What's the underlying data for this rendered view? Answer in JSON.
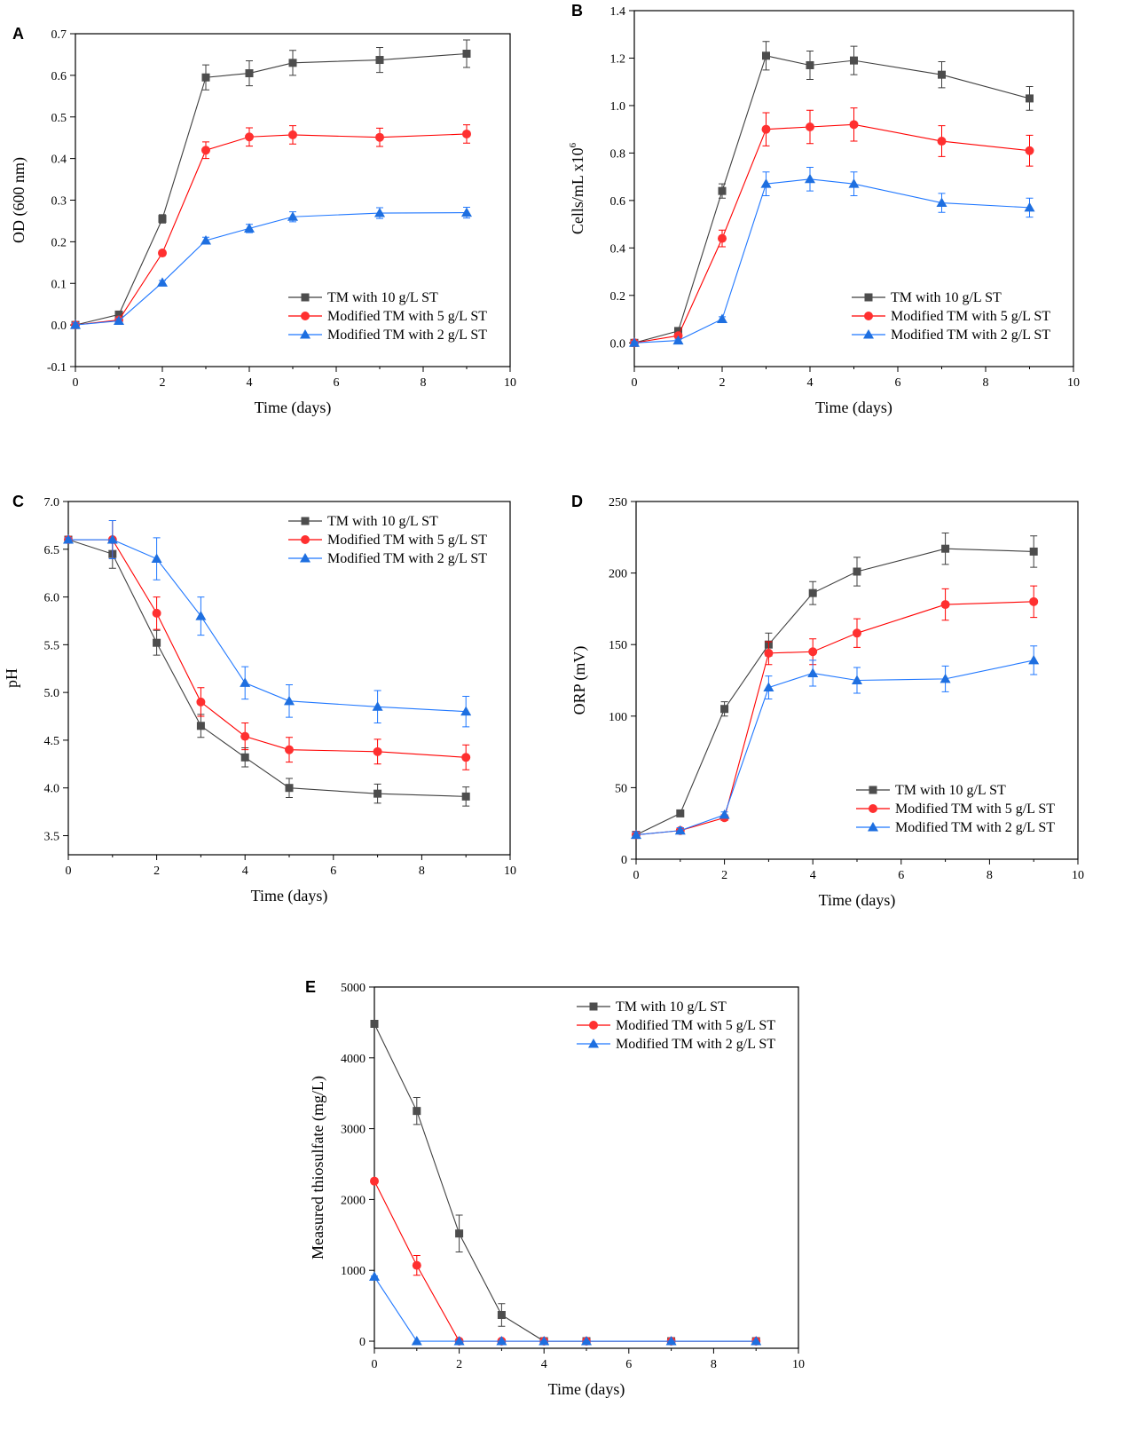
{
  "colors": {
    "series1": "#3f3f3f",
    "series2": "#ff0000",
    "series3": "#1f77ff",
    "series1_marker": "#4d4d4d",
    "series2_marker": "#ff3030",
    "series3_marker": "#1e6fe0"
  },
  "legend_labels": [
    "TM with 10 g/L ST",
    "Modified TM with 5 g/L ST",
    "Modified TM with 2 g/L ST"
  ],
  "chart_data": [
    {
      "type": "line",
      "panel_label": "A",
      "xlabel": "Time (days)",
      "ylabel": "OD (600 nm)",
      "xlim": [
        0,
        10
      ],
      "ylim": [
        -0.1,
        0.7
      ],
      "xticks": [
        "0",
        "2",
        "4",
        "6",
        "8",
        "10"
      ],
      "yticks": [
        "-0.1",
        "0.0",
        "0.1",
        "0.2",
        "0.3",
        "0.4",
        "0.5",
        "0.6",
        "0.7"
      ],
      "legend_position": "bottom-right",
      "x": [
        0,
        1,
        2,
        3,
        4,
        5,
        7,
        9
      ],
      "series": [
        {
          "name": "TM with 10 g/L ST",
          "marker": "square",
          "values": [
            0.0,
            0.025,
            0.255,
            0.595,
            0.605,
            0.63,
            0.637,
            0.652
          ],
          "errors": [
            0.005,
            0.005,
            0.01,
            0.03,
            0.03,
            0.03,
            0.03,
            0.033
          ]
        },
        {
          "name": "Modified TM with 5 g/L ST",
          "marker": "circle",
          "values": [
            0.0,
            0.012,
            0.173,
            0.42,
            0.452,
            0.457,
            0.451,
            0.459
          ],
          "errors": [
            0.005,
            0.005,
            0.005,
            0.02,
            0.022,
            0.022,
            0.022,
            0.022
          ]
        },
        {
          "name": "Modified TM with 2 g/L ST",
          "marker": "triangle",
          "values": [
            0.0,
            0.01,
            0.102,
            0.203,
            0.232,
            0.26,
            0.269,
            0.27
          ],
          "errors": [
            0.005,
            0.005,
            0.005,
            0.008,
            0.01,
            0.012,
            0.013,
            0.013
          ]
        }
      ]
    },
    {
      "type": "line",
      "panel_label": "B",
      "xlabel": "Time (days)",
      "ylabel": "Cells/mL x10",
      "ylabel_superscript": "6",
      "xlim": [
        0,
        10
      ],
      "ylim": [
        -0.1,
        1.4
      ],
      "xticks": [
        "0",
        "2",
        "4",
        "6",
        "8",
        "10"
      ],
      "yticks": [
        "0.0",
        "0.2",
        "0.4",
        "0.6",
        "0.8",
        "1.0",
        "1.2",
        "1.4"
      ],
      "legend_position": "bottom-right",
      "x": [
        0,
        1,
        2,
        3,
        4,
        5,
        7,
        9
      ],
      "series": [
        {
          "name": "TM with 10 g/L ST",
          "marker": "square",
          "values": [
            0.0,
            0.05,
            0.64,
            1.21,
            1.17,
            1.19,
            1.13,
            1.03
          ],
          "errors": [
            0.005,
            0.01,
            0.03,
            0.06,
            0.06,
            0.06,
            0.055,
            0.05
          ]
        },
        {
          "name": "Modified TM with 5 g/L ST",
          "marker": "circle",
          "values": [
            0.0,
            0.03,
            0.44,
            0.9,
            0.91,
            0.92,
            0.85,
            0.81
          ],
          "errors": [
            0.005,
            0.01,
            0.035,
            0.07,
            0.07,
            0.07,
            0.065,
            0.065
          ]
        },
        {
          "name": "Modified TM with 2 g/L ST",
          "marker": "triangle",
          "values": [
            0.0,
            0.01,
            0.1,
            0.67,
            0.69,
            0.67,
            0.59,
            0.57
          ],
          "errors": [
            0.005,
            0.005,
            0.01,
            0.05,
            0.05,
            0.05,
            0.04,
            0.04
          ]
        }
      ]
    },
    {
      "type": "line",
      "panel_label": "C",
      "xlabel": "Time (days)",
      "ylabel": "pH",
      "xlim": [
        0,
        10
      ],
      "ylim": [
        3.3,
        7.0
      ],
      "xticks": [
        "0",
        "2",
        "4",
        "6",
        "8",
        "10"
      ],
      "yticks": [
        "3.5",
        "4.0",
        "4.5",
        "5.0",
        "5.5",
        "6.0",
        "6.5",
        "7.0"
      ],
      "legend_position": "top-right",
      "x": [
        0,
        1,
        2,
        3,
        4,
        5,
        7,
        9
      ],
      "series": [
        {
          "name": "TM with 10 g/L ST",
          "marker": "square",
          "values": [
            6.6,
            6.45,
            5.52,
            4.65,
            4.32,
            4.0,
            3.94,
            3.91
          ],
          "errors": [
            0.02,
            0.15,
            0.13,
            0.12,
            0.1,
            0.1,
            0.1,
            0.1
          ]
        },
        {
          "name": "Modified TM with 5 g/L ST",
          "marker": "circle",
          "values": [
            6.6,
            6.6,
            5.83,
            4.9,
            4.54,
            4.4,
            4.38,
            4.32
          ],
          "errors": [
            0.02,
            0.2,
            0.17,
            0.15,
            0.14,
            0.13,
            0.13,
            0.13
          ]
        },
        {
          "name": "Modified TM with 2 g/L ST",
          "marker": "triangle",
          "values": [
            6.6,
            6.6,
            6.4,
            5.8,
            5.1,
            4.91,
            4.85,
            4.8
          ],
          "errors": [
            0.02,
            0.2,
            0.22,
            0.2,
            0.17,
            0.17,
            0.17,
            0.16
          ]
        }
      ]
    },
    {
      "type": "line",
      "panel_label": "D",
      "xlabel": "Time (days)",
      "ylabel": "ORP (mV)",
      "xlim": [
        0,
        10
      ],
      "ylim": [
        0,
        250
      ],
      "xticks": [
        "0",
        "2",
        "4",
        "6",
        "8",
        "10"
      ],
      "yticks": [
        "0",
        "50",
        "100",
        "150",
        "200",
        "250"
      ],
      "legend_position": "bottom-right",
      "x": [
        0,
        1,
        2,
        3,
        4,
        5,
        7,
        9
      ],
      "series": [
        {
          "name": "TM with 10 g/L ST",
          "marker": "square",
          "values": [
            17,
            32,
            105,
            150,
            186,
            201,
            217,
            215
          ],
          "errors": [
            2,
            2,
            5,
            8,
            8,
            10,
            11,
            11
          ]
        },
        {
          "name": "Modified TM with 5 g/L ST",
          "marker": "circle",
          "values": [
            17,
            20,
            29,
            144,
            145,
            158,
            178,
            180
          ],
          "errors": [
            2,
            2,
            2,
            8,
            9,
            10,
            11,
            11
          ]
        },
        {
          "name": "Modified TM with 2 g/L ST",
          "marker": "triangle",
          "values": [
            17,
            20,
            31,
            120,
            130,
            125,
            126,
            139
          ],
          "errors": [
            2,
            2,
            2,
            8,
            9,
            9,
            9,
            10
          ]
        }
      ]
    },
    {
      "type": "line",
      "panel_label": "E",
      "xlabel": "Time (days)",
      "ylabel": "Measured thiosulfate (mg/L)",
      "xlim": [
        0,
        10
      ],
      "ylim": [
        -100,
        5000
      ],
      "xticks": [
        "0",
        "2",
        "4",
        "6",
        "8",
        "10"
      ],
      "yticks": [
        "0",
        "1000",
        "2000",
        "3000",
        "4000",
        "5000"
      ],
      "legend_position": "top-right",
      "x": [
        0,
        1,
        2,
        3,
        4,
        5,
        7,
        9
      ],
      "series": [
        {
          "name": "TM with 10 g/L ST",
          "marker": "square",
          "values": [
            4480,
            3250,
            1520,
            370,
            0,
            0,
            0,
            0
          ],
          "errors": [
            20,
            190,
            260,
            160,
            0,
            0,
            0,
            0
          ]
        },
        {
          "name": "Modified TM with 5 g/L ST",
          "marker": "circle",
          "values": [
            2260,
            1070,
            0,
            0,
            0,
            0,
            0,
            0
          ],
          "errors": [
            10,
            140,
            0,
            0,
            0,
            0,
            0,
            0
          ]
        },
        {
          "name": "Modified TM with 2 g/L ST",
          "marker": "triangle",
          "values": [
            910,
            0,
            0,
            0,
            0,
            0,
            0,
            0
          ],
          "errors": [
            10,
            0,
            0,
            0,
            0,
            0,
            0,
            0
          ]
        }
      ]
    }
  ]
}
